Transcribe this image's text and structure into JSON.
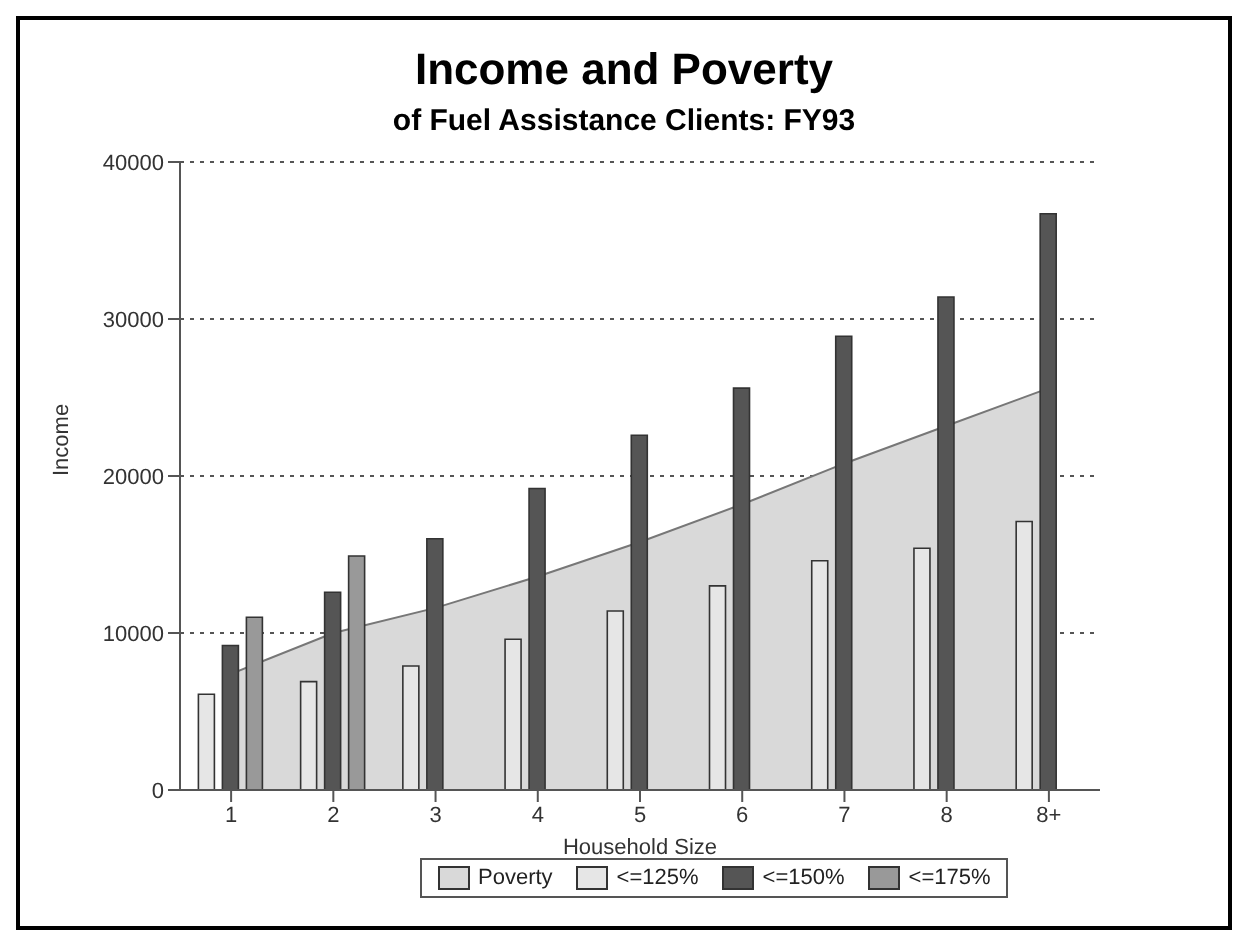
{
  "chart_data": {
    "type": "bar",
    "title": "Income and Poverty",
    "subtitle": "of Fuel Assistance Clients: FY93",
    "xlabel": "Household Size",
    "ylabel": "Income",
    "categories": [
      "1",
      "2",
      "3",
      "4",
      "5",
      "6",
      "7",
      "8",
      "8+"
    ],
    "series": [
      {
        "name": "Poverty",
        "type": "area",
        "color": "#d9d9d9",
        "values": [
          7400,
          10000,
          11600,
          13600,
          15800,
          18200,
          20800,
          23200,
          25600
        ]
      },
      {
        "name": "<=125%",
        "color": "#e6e6e6",
        "values": [
          6100,
          6900,
          7900,
          9600,
          11400,
          13000,
          14600,
          15400,
          17100
        ]
      },
      {
        "name": "<=150%",
        "color": "#555555",
        "values": [
          9200,
          12600,
          16000,
          19200,
          22600,
          25600,
          28900,
          31400,
          36700
        ]
      },
      {
        "name": "<=175%",
        "color": "#999999",
        "values": [
          11000,
          14900,
          null,
          null,
          null,
          null,
          null,
          null,
          null
        ]
      }
    ],
    "ylim": [
      0,
      40000
    ],
    "yticks": [
      0,
      10000,
      20000,
      30000,
      40000
    ],
    "grid": "y",
    "legend": "bottom"
  }
}
